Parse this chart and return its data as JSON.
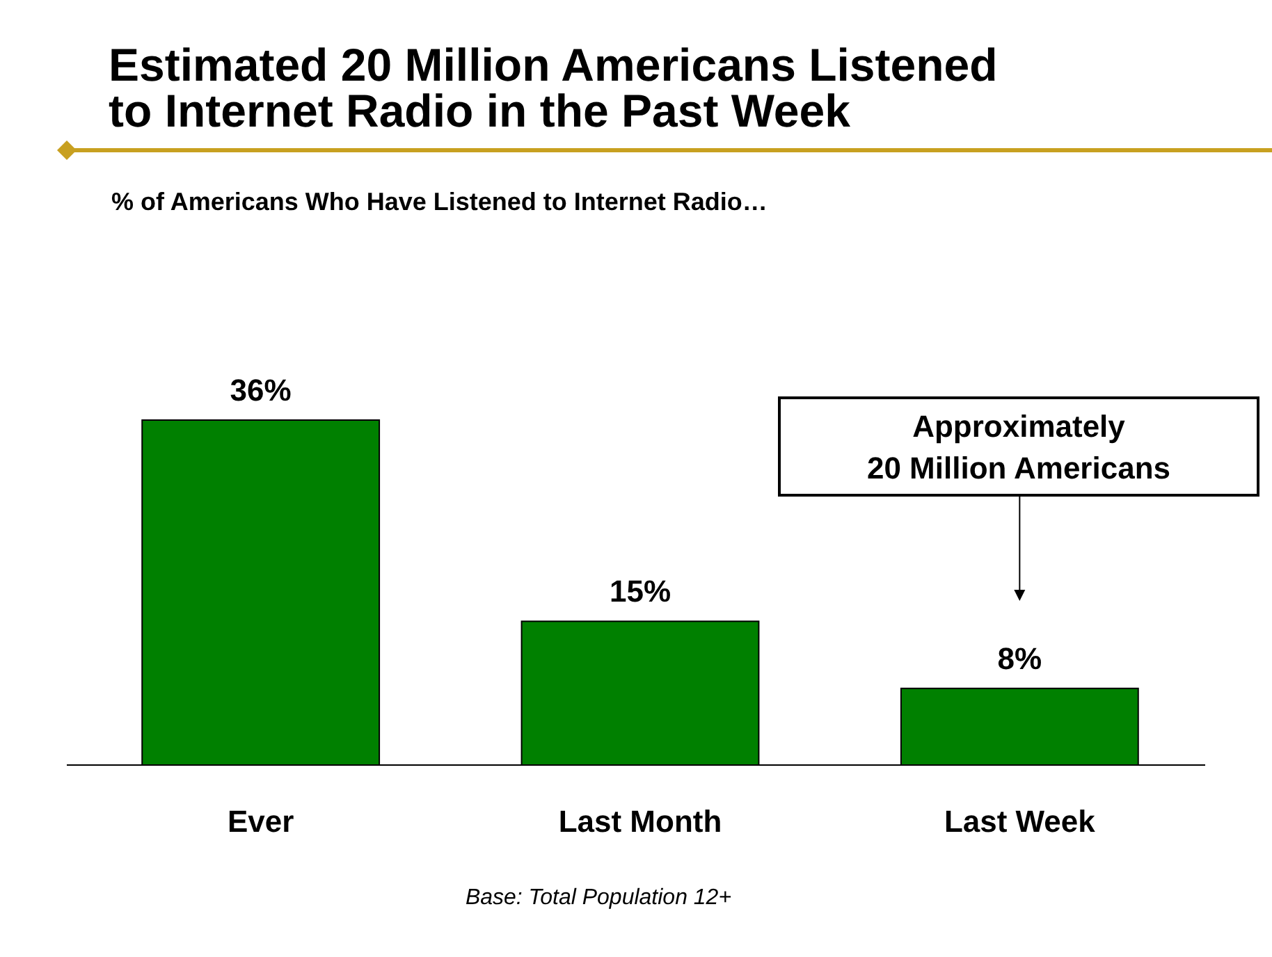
{
  "chart_data": {
    "type": "bar",
    "title": "Estimated 20 Million Americans Listened\nto Internet Radio in the Past Week",
    "subtitle": "% of Americans Who Have Listened to Internet Radio…",
    "categories": [
      "Ever",
      "Last Month",
      "Last Week"
    ],
    "values": [
      36,
      15,
      8
    ],
    "color": "#008000",
    "value_labels": [
      "36%",
      "15%",
      "8%"
    ],
    "annotations": [
      "Approximately\n20 Million Americans",
      "Base:  Total Population 12+"
    ]
  }
}
